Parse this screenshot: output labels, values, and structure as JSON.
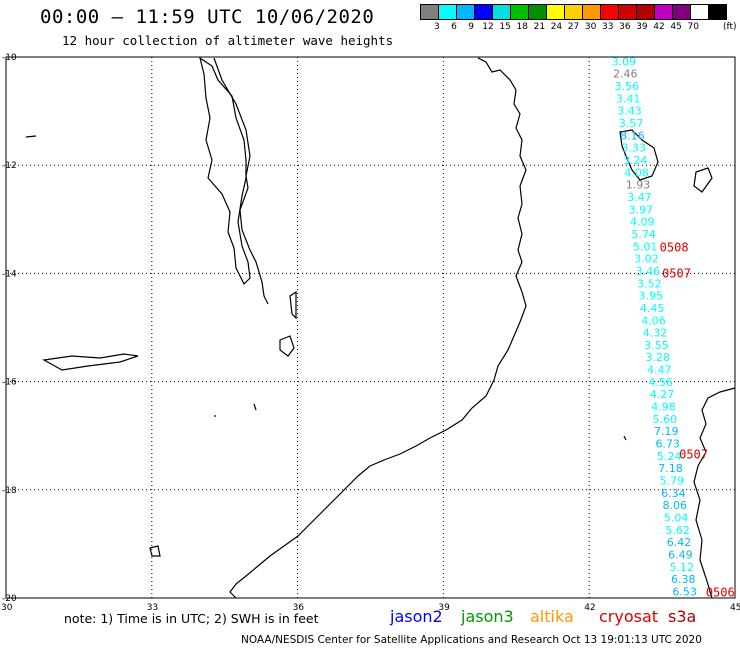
{
  "header": {
    "title": "00:00 – 11:59 UTC 10/06/2020",
    "subtitle": "12 hour collection of altimeter wave heights"
  },
  "colorbar": {
    "colors": [
      "#808080",
      "#00ffff",
      "#00b8ff",
      "#0000ff",
      "#00e0e0",
      "#00c000",
      "#009000",
      "#ffff00",
      "#ffd000",
      "#ff9900",
      "#ff0000",
      "#d00000",
      "#b00000",
      "#c000c0",
      "#800080",
      "#ffffff",
      "#000000"
    ],
    "labels": [
      "3",
      "6",
      "9",
      "12",
      "15",
      "18",
      "21",
      "24",
      "27",
      "30",
      "33",
      "36",
      "39",
      "42",
      "45",
      "70"
    ],
    "unit": "(ft)"
  },
  "axes": {
    "lat_labels": [
      "-10",
      "-12",
      "-14",
      "-16",
      "-18",
      "-20"
    ],
    "lon_labels": [
      "30",
      "33",
      "36",
      "39",
      "42",
      "45"
    ],
    "lat_range": [
      -20,
      -10
    ],
    "lon_range": [
      30,
      45
    ]
  },
  "wave_heights": [
    {
      "v": "3.09",
      "c": "#00ffff"
    },
    {
      "v": "2.46",
      "c": "#808080"
    },
    {
      "v": "3.56",
      "c": "#00ffff"
    },
    {
      "v": "3.41",
      "c": "#00ffff"
    },
    {
      "v": "3.43",
      "c": "#00ffff"
    },
    {
      "v": "3.57",
      "c": "#00ffff"
    },
    {
      "v": "8.16",
      "c": "#00b8ff"
    },
    {
      "v": "3.33",
      "c": "#00ffff"
    },
    {
      "v": "3.24",
      "c": "#00ffff"
    },
    {
      "v": "4.08",
      "c": "#00ffff"
    },
    {
      "v": "1.93",
      "c": "#808080"
    },
    {
      "v": "3.47",
      "c": "#00ffff"
    },
    {
      "v": "3.97",
      "c": "#00ffff"
    },
    {
      "v": "4.09",
      "c": "#00ffff"
    },
    {
      "v": "5.74",
      "c": "#00ffff"
    },
    {
      "v": "5.01",
      "c": "#00ffff"
    },
    {
      "v": "3.02",
      "c": "#00ffff"
    },
    {
      "v": "3.46",
      "c": "#00ffff"
    },
    {
      "v": "3.52",
      "c": "#00ffff"
    },
    {
      "v": "3.95",
      "c": "#00ffff"
    },
    {
      "v": "4.45",
      "c": "#00ffff"
    },
    {
      "v": "4.06",
      "c": "#00ffff"
    },
    {
      "v": "4.32",
      "c": "#00ffff"
    },
    {
      "v": "3.55",
      "c": "#00ffff"
    },
    {
      "v": "3.28",
      "c": "#00ffff"
    },
    {
      "v": "4.47",
      "c": "#00ffff"
    },
    {
      "v": "4.56",
      "c": "#00ffff"
    },
    {
      "v": "4.27",
      "c": "#00ffff"
    },
    {
      "v": "4.98",
      "c": "#00ffff"
    },
    {
      "v": "5.60",
      "c": "#00ffff"
    },
    {
      "v": "7.19",
      "c": "#00b8ff"
    },
    {
      "v": "6.73",
      "c": "#00b8ff"
    },
    {
      "v": "5.24",
      "c": "#00ffff"
    },
    {
      "v": "7.18",
      "c": "#00b8ff"
    },
    {
      "v": "5.79",
      "c": "#00ffff"
    },
    {
      "v": "6.34",
      "c": "#00b8ff"
    },
    {
      "v": "8.06",
      "c": "#00b8ff"
    },
    {
      "v": "5.04",
      "c": "#00ffff"
    },
    {
      "v": "5.62",
      "c": "#00ffff"
    },
    {
      "v": "6.42",
      "c": "#00b8ff"
    },
    {
      "v": "6.49",
      "c": "#00b8ff"
    },
    {
      "v": "5.12",
      "c": "#00ffff"
    },
    {
      "v": "6.38",
      "c": "#00b8ff"
    },
    {
      "v": "6.53",
      "c": "#00b8ff"
    }
  ],
  "pass_times": [
    "0508",
    "0507",
    "0507",
    "0506"
  ],
  "note": "note: 1) Time is in UTC; 2) SWH is in feet",
  "satellites": [
    {
      "name": "jason2",
      "color": "#0000ff"
    },
    {
      "name": "jason3",
      "color": "#009900"
    },
    {
      "name": "altika",
      "color": "#ff9900"
    },
    {
      "name": "cryosat",
      "color": "#e00000"
    },
    {
      "name": "s3a",
      "color": "#b00000"
    }
  ],
  "footer": "NOAA/NESDIS Center for Satellite Applications and Research    Oct 13 19:01:13 UTC 2020"
}
